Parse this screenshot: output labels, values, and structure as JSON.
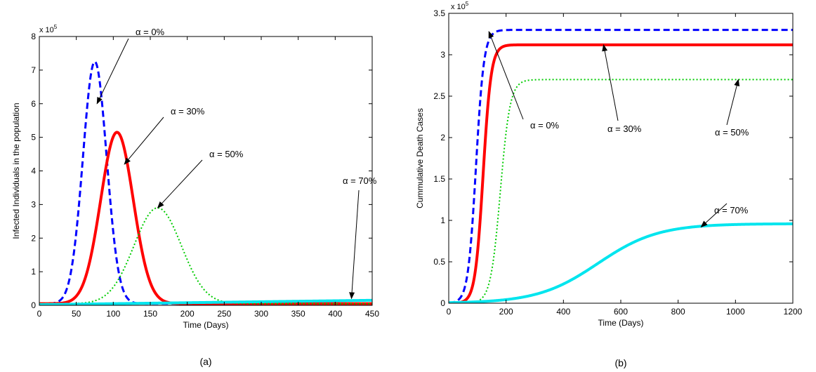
{
  "chart_data": [
    {
      "panel": "a",
      "type": "line",
      "caption": "(a)",
      "xlabel": "Time (Days)",
      "ylabel": "Infected Individuals in the population",
      "xlim": [
        0,
        450
      ],
      "ylim": [
        0,
        8
      ],
      "y_multiplier": "x 10",
      "y_exponent": "5",
      "xticks": [
        "0",
        "50",
        "100",
        "150",
        "200",
        "250",
        "300",
        "350",
        "400",
        "450"
      ],
      "yticks": [
        "0",
        "1",
        "2",
        "3",
        "4",
        "5",
        "6",
        "7",
        "8"
      ],
      "grid": false,
      "series": [
        {
          "name": "α = 0%",
          "color": "#0000ff",
          "style": "dashed",
          "peak_x": 75,
          "peak_y": 7.25,
          "width": 16,
          "baseline": 0.05
        },
        {
          "name": "α = 30%",
          "color": "#ff0000",
          "style": "solid",
          "peak_x": 105,
          "peak_y": 5.15,
          "width": 22,
          "baseline": 0.05
        },
        {
          "name": "α = 50%",
          "color": "#00cc00",
          "style": "dotted",
          "peak_x": 160,
          "peak_y": 2.9,
          "width": 32,
          "baseline": 0.05
        },
        {
          "name": "α = 70%",
          "color": "#00e5ee",
          "style": "solid",
          "linear_start": 0.02,
          "linear_end": 0.15
        }
      ],
      "annotations": [
        {
          "text": "α = 0%",
          "target_x": 78,
          "target_y": 6.0
        },
        {
          "text": "α = 30%",
          "target_x": 115,
          "target_y": 4.2
        },
        {
          "text": "α = 50%",
          "target_x": 160,
          "target_y": 2.9
        },
        {
          "text": "α = 70%",
          "target_x": 422,
          "target_y": 0.2
        }
      ]
    },
    {
      "panel": "b",
      "type": "line",
      "caption": "(b)",
      "xlabel": "Time (Days)",
      "ylabel": "Cummulative Death Cases",
      "xlim": [
        0,
        1200
      ],
      "ylim": [
        0,
        3.5
      ],
      "y_multiplier": "x 10",
      "y_exponent": "5",
      "xticks": [
        "0",
        "200",
        "400",
        "600",
        "800",
        "1000",
        "1200"
      ],
      "yticks": [
        "0",
        "0.5",
        "1",
        "1.5",
        "2",
        "2.5",
        "3",
        "3.5"
      ],
      "grid": false,
      "series": [
        {
          "name": "α = 0%",
          "color": "#0000ff",
          "style": "dashed",
          "plateau": 3.3,
          "mid": 95,
          "scale": 14
        },
        {
          "name": "α = 30%",
          "color": "#ff0000",
          "style": "solid",
          "plateau": 3.12,
          "mid": 120,
          "scale": 14
        },
        {
          "name": "α = 50%",
          "color": "#00cc00",
          "style": "dotted",
          "plateau": 2.7,
          "mid": 180,
          "scale": 17
        },
        {
          "name": "α = 70%",
          "color": "#00e5ee",
          "style": "solid",
          "plateau": 0.96,
          "mid": 520,
          "scale": 105
        }
      ],
      "annotations": [
        {
          "text": "α  = 0%",
          "target_x": 140,
          "target_y": 3.28
        },
        {
          "text": "α = 30%",
          "target_x": 540,
          "target_y": 3.12
        },
        {
          "text": "α = 50%",
          "target_x": 1010,
          "target_y": 2.7
        },
        {
          "text": "α = 70%",
          "target_x": 880,
          "target_y": 0.92
        }
      ]
    }
  ]
}
